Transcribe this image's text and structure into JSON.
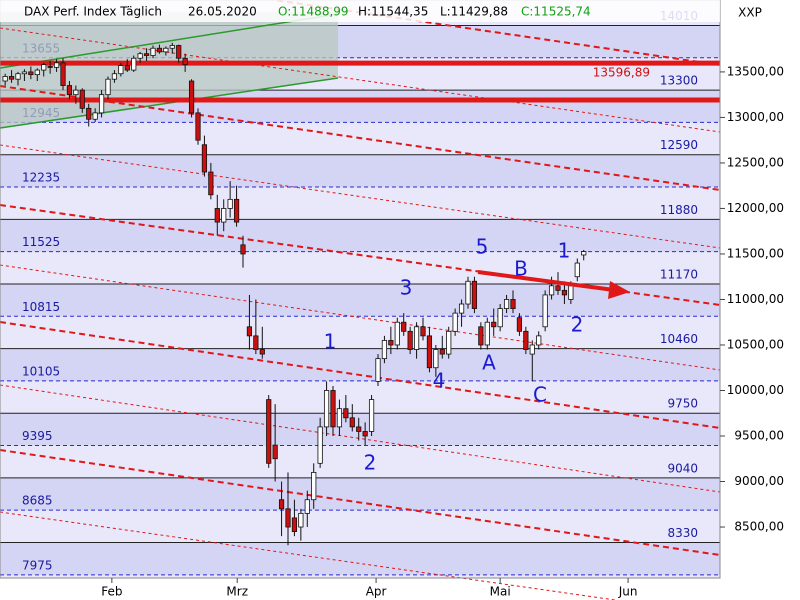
{
  "chart_data": {
    "type": "candlestick",
    "title": "DAX Perf. Index Täglich",
    "date": "26.05.2020",
    "ohlc_header": [
      "O:11488,99",
      "H:11544,35",
      "L:11429,88",
      "C:11525,74"
    ],
    "y_axis_label": "XXP",
    "up_color": "#ffffff",
    "down_color": "#cc1010",
    "ylim": [
      7940,
      14290
    ],
    "yticks": [
      {
        "value": 8500,
        "label": "8500,00"
      },
      {
        "value": 9000,
        "label": "9000,00"
      },
      {
        "value": 9500,
        "label": "9500,00"
      },
      {
        "value": 10000,
        "label": "10000,00"
      },
      {
        "value": 10500,
        "label": "10500,00"
      },
      {
        "value": 11000,
        "label": "11000,00"
      },
      {
        "value": 11500,
        "label": "11500,00"
      },
      {
        "value": 12000,
        "label": "12000,00"
      },
      {
        "value": 12500,
        "label": "12500,00"
      },
      {
        "value": 13000,
        "label": "13000,00"
      },
      {
        "value": 13500,
        "label": "13500,00"
      }
    ],
    "xlim": [
      -0.8,
      111.2
    ],
    "xticks": [
      {
        "value": 16.6,
        "label": "Feb"
      },
      {
        "value": 36.1,
        "label": "Mrz"
      },
      {
        "value": 57.7,
        "label": "Apr"
      },
      {
        "value": 77,
        "label": "Mai"
      },
      {
        "value": 96.9,
        "label": "Jun"
      }
    ],
    "levels_right": [
      14010,
      13300,
      12590,
      11880,
      11170,
      10460,
      9750,
      9040,
      8330
    ],
    "levels_left": [
      13655,
      12945,
      12235,
      11525,
      10815,
      10105,
      9395,
      8685,
      7975
    ],
    "red_lines": [
      {
        "value": 13596.89,
        "label": "13596,89"
      },
      {
        "value": 13192
      }
    ],
    "annotations": [
      "1",
      "2",
      "3",
      "4",
      "5",
      "A",
      "B",
      "C",
      "1",
      "2"
    ],
    "ohlc": [
      [
        13400,
        13480,
        13350,
        13450
      ],
      [
        13450,
        13520,
        13380,
        13420
      ],
      [
        13420,
        13500,
        13350,
        13480
      ],
      [
        13480,
        13530,
        13400,
        13500
      ],
      [
        13500,
        13560,
        13420,
        13470
      ],
      [
        13470,
        13540,
        13400,
        13520
      ],
      [
        13520,
        13600,
        13450,
        13580
      ],
      [
        13560,
        13620,
        13480,
        13550
      ],
      [
        13550,
        13640,
        13500,
        13600
      ],
      [
        13600,
        13650,
        13300,
        13350
      ],
      [
        13350,
        13400,
        13200,
        13250
      ],
      [
        13250,
        13350,
        13150,
        13300
      ],
      [
        13300,
        13320,
        13050,
        13100
      ],
      [
        13100,
        13150,
        12900,
        12980
      ],
      [
        12980,
        13100,
        12950,
        13050
      ],
      [
        13050,
        13300,
        13000,
        13250
      ],
      [
        13250,
        13450,
        13200,
        13420
      ],
      [
        13420,
        13520,
        13380,
        13480
      ],
      [
        13480,
        13600,
        13450,
        13570
      ],
      [
        13570,
        13640,
        13500,
        13520
      ],
      [
        13520,
        13680,
        13500,
        13650
      ],
      [
        13650,
        13720,
        13600,
        13700
      ],
      [
        13700,
        13760,
        13620,
        13680
      ],
      [
        13680,
        13790,
        13650,
        13760
      ],
      [
        13760,
        13800,
        13700,
        13720
      ],
      [
        13720,
        13780,
        13680,
        13760
      ],
      [
        13760,
        13820,
        13700,
        13790
      ],
      [
        13790,
        13800,
        13600,
        13650
      ],
      [
        13650,
        13700,
        13500,
        13580
      ],
      [
        13400,
        13420,
        13000,
        13050
      ],
      [
        13050,
        13100,
        12700,
        12750
      ],
      [
        12700,
        12800,
        12350,
        12400
      ],
      [
        12400,
        12500,
        12100,
        12150
      ],
      [
        12000,
        12150,
        11700,
        11850
      ],
      [
        11850,
        12100,
        11750,
        12000
      ],
      [
        12000,
        12300,
        11900,
        12100
      ],
      [
        12100,
        12250,
        11800,
        11850
      ],
      [
        11600,
        11700,
        11350,
        11500
      ],
      [
        10700,
        11050,
        10450,
        10600
      ],
      [
        10600,
        11000,
        10400,
        10450
      ],
      [
        10450,
        10700,
        10350,
        10400
      ],
      [
        9900,
        9950,
        9150,
        9200
      ],
      [
        9400,
        9850,
        9000,
        9250
      ],
      [
        8800,
        9000,
        8400,
        8700
      ],
      [
        8700,
        9100,
        8300,
        8500
      ],
      [
        8600,
        8800,
        8400,
        8450
      ],
      [
        8500,
        8700,
        8350,
        8650
      ],
      [
        8650,
        8900,
        8500,
        8800
      ],
      [
        8800,
        9200,
        8700,
        9100
      ],
      [
        9200,
        9700,
        9150,
        9600
      ],
      [
        9600,
        10100,
        9500,
        10000
      ],
      [
        10000,
        10050,
        9500,
        9600
      ],
      [
        9600,
        9900,
        9500,
        9800
      ],
      [
        9800,
        9950,
        9650,
        9700
      ],
      [
        9700,
        9850,
        9550,
        9600
      ],
      [
        9600,
        9700,
        9450,
        9550
      ],
      [
        9550,
        9650,
        9400,
        9500
      ],
      [
        9550,
        9950,
        9500,
        9900
      ],
      [
        10100,
        10400,
        10050,
        10350
      ],
      [
        10350,
        10600,
        10300,
        10550
      ],
      [
        10550,
        10700,
        10400,
        10500
      ],
      [
        10500,
        10800,
        10450,
        10750
      ],
      [
        10750,
        10850,
        10600,
        10650
      ],
      [
        10650,
        10700,
        10400,
        10450
      ],
      [
        10450,
        10750,
        10350,
        10700
      ],
      [
        10700,
        10800,
        10550,
        10600
      ],
      [
        10600,
        10700,
        10200,
        10250
      ],
      [
        10250,
        10500,
        10150,
        10450
      ],
      [
        10450,
        10600,
        10350,
        10400
      ],
      [
        10400,
        10700,
        10350,
        10650
      ],
      [
        10650,
        10900,
        10600,
        10850
      ],
      [
        10850,
        11000,
        10700,
        10950
      ],
      [
        10950,
        11250,
        10900,
        11200
      ],
      [
        11200,
        11250,
        10850,
        10900
      ],
      [
        10700,
        10750,
        10450,
        10500
      ],
      [
        10500,
        10800,
        10450,
        10750
      ],
      [
        10750,
        10900,
        10600,
        10700
      ],
      [
        10700,
        10950,
        10650,
        10900
      ],
      [
        10900,
        11050,
        10850,
        11000
      ],
      [
        11000,
        11100,
        10850,
        10900
      ],
      [
        10800,
        10850,
        10600,
        10650
      ],
      [
        10650,
        10700,
        10400,
        10450
      ],
      [
        10400,
        10550,
        10100,
        10500
      ],
      [
        10500,
        10650,
        10450,
        10600
      ],
      [
        10700,
        11100,
        10650,
        11050
      ],
      [
        11050,
        11250,
        11000,
        11150
      ],
      [
        11150,
        11300,
        11050,
        11100
      ],
      [
        11100,
        11200,
        10950,
        11050
      ],
      [
        11000,
        11200,
        10950,
        11150
      ],
      [
        11250,
        11450,
        11200,
        11400
      ],
      [
        11489,
        11544,
        11430,
        11526
      ]
    ]
  }
}
